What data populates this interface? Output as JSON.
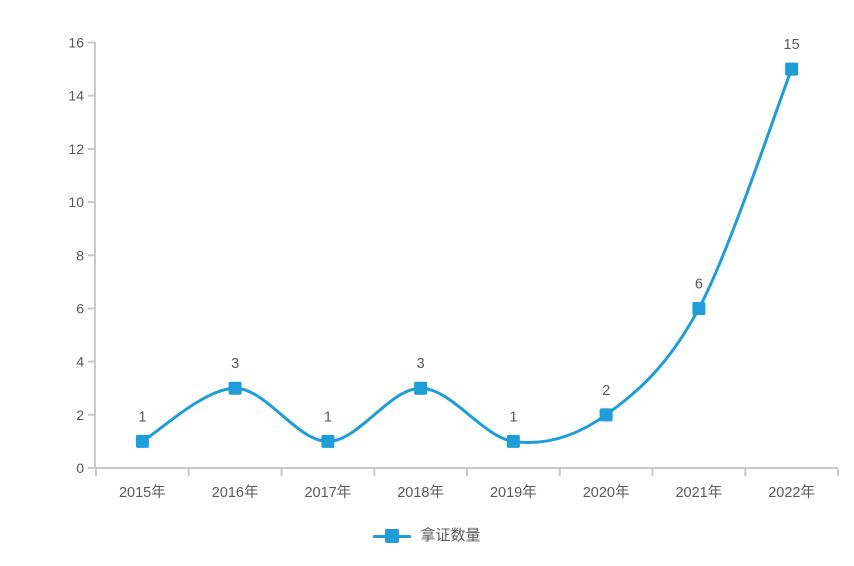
{
  "chart_data": {
    "type": "line",
    "smooth": true,
    "title": "",
    "xlabel": "",
    "ylabel": "",
    "categories": [
      "2015年",
      "2016年",
      "2017年",
      "2018年",
      "2019年",
      "2020年",
      "2021年",
      "2022年"
    ],
    "series": [
      {
        "name": "拿证数量",
        "values": [
          1,
          3,
          1,
          3,
          1,
          2,
          6,
          15
        ]
      }
    ],
    "data_labels": [
      1,
      3,
      1,
      3,
      1,
      2,
      6,
      15
    ],
    "ylim": [
      0,
      16
    ],
    "ytick_step": 2,
    "ytick_labels": [
      "0",
      "2",
      "4",
      "6",
      "8",
      "10",
      "12",
      "14",
      "16"
    ],
    "grid": false,
    "legend_position": "bottom",
    "marker_shape": "square",
    "colors": {
      "series": "#1e9dd8",
      "axis": "#c9c9c9",
      "text": "#595959"
    }
  }
}
